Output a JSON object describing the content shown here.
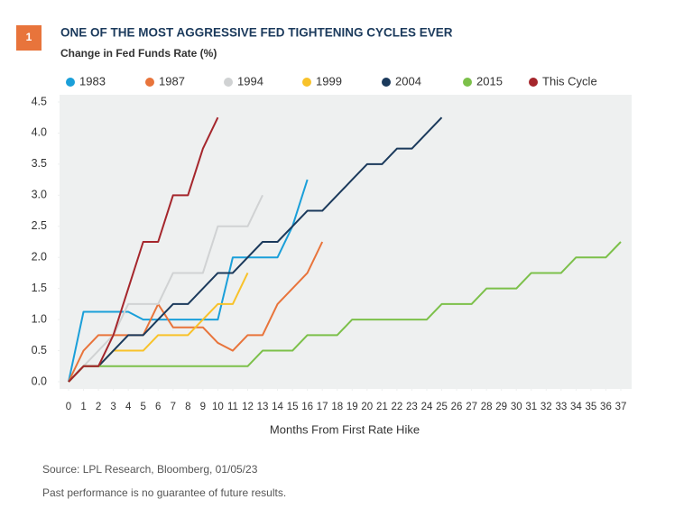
{
  "chart_data": {
    "type": "line",
    "badge": "1",
    "title": "ONE OF THE MOST AGGRESSIVE FED TIGHTENING CYCLES EVER",
    "subtitle": "Change in Fed Funds Rate (%)",
    "x_label": "Months From First Rate Hike",
    "source": "Source: LPL Research, Bloomberg, 01/05/23",
    "note": "Past performance is no guarantee of future results.",
    "x": [
      0,
      1,
      2,
      3,
      4,
      5,
      6,
      7,
      8,
      9,
      10,
      11,
      12,
      13,
      14,
      15,
      16,
      17,
      18,
      19,
      20,
      21,
      22,
      23,
      24,
      25,
      26,
      27,
      28,
      29,
      30,
      31,
      32,
      33,
      34,
      35,
      36,
      37
    ],
    "xlim": [
      0,
      37
    ],
    "xticks": [
      0,
      1,
      2,
      3,
      4,
      5,
      6,
      7,
      8,
      9,
      10,
      11,
      12,
      13,
      14,
      15,
      16,
      17,
      18,
      19,
      20,
      21,
      22,
      23,
      24,
      25,
      26,
      27,
      28,
      29,
      30,
      31,
      32,
      33,
      34,
      35,
      36,
      37
    ],
    "ylim": [
      0,
      4.5
    ],
    "yticks": [
      {
        "value": 0,
        "label": "0.0"
      },
      0.5,
      {
        "value": 1,
        "label": "1.0"
      },
      1.5,
      {
        "value": 2,
        "label": "2.0"
      },
      2.5,
      {
        "value": 3,
        "label": "3.0"
      },
      3.5,
      {
        "value": 4,
        "label": "4.0"
      },
      4.5
    ],
    "series": [
      {
        "name": "1983",
        "color": "#1a9fd9",
        "values": [
          0,
          1.125,
          1.125,
          1.125,
          1.125,
          1,
          1,
          1,
          1,
          1,
          1,
          2,
          2,
          2,
          2,
          2.5,
          3.25,
          null,
          null,
          null,
          null,
          null,
          null,
          null,
          null,
          null,
          null,
          null,
          null,
          null,
          null,
          null,
          null,
          null,
          null,
          null,
          null,
          null
        ]
      },
      {
        "name": "1987",
        "color": "#e8743b",
        "values": [
          0,
          0.5,
          0.75,
          0.75,
          0.75,
          0.75,
          1.25,
          0.875,
          0.875,
          0.875,
          0.625,
          0.5,
          0.75,
          0.75,
          1.25,
          1.5,
          1.75,
          2.25,
          null,
          null,
          null,
          null,
          null,
          null,
          null,
          null,
          null,
          null,
          null,
          null,
          null,
          null,
          null,
          null,
          null,
          null,
          null,
          null
        ]
      },
      {
        "name": "1994",
        "color": "#d0d2d3",
        "values": [
          0,
          0.25,
          0.5,
          0.75,
          1.25,
          1.25,
          1.25,
          1.75,
          1.75,
          1.75,
          2.5,
          2.5,
          2.5,
          3,
          null,
          null,
          null,
          null,
          null,
          null,
          null,
          null,
          null,
          null,
          null,
          null,
          null,
          null,
          null,
          null,
          null,
          null,
          null,
          null,
          null,
          null,
          null,
          null
        ]
      },
      {
        "name": "1999",
        "color": "#f8c22a",
        "values": [
          0,
          0.25,
          0.25,
          0.5,
          0.5,
          0.5,
          0.75,
          0.75,
          0.75,
          1,
          1.25,
          1.25,
          1.75,
          null,
          null,
          null,
          null,
          null,
          null,
          null,
          null,
          null,
          null,
          null,
          null,
          null,
          null,
          null,
          null,
          null,
          null,
          null,
          null,
          null,
          null,
          null,
          null,
          null
        ]
      },
      {
        "name": "2004",
        "color": "#1b3a5c",
        "values": [
          0,
          0.25,
          0.25,
          0.5,
          0.75,
          0.75,
          1,
          1.25,
          1.25,
          1.5,
          1.75,
          1.75,
          2,
          2.25,
          2.25,
          2.5,
          2.75,
          2.75,
          3,
          3.25,
          3.5,
          3.5,
          3.75,
          3.75,
          4,
          4.25,
          null,
          null,
          null,
          null,
          null,
          null,
          null,
          null,
          null,
          null,
          null,
          null
        ]
      },
      {
        "name": "2015",
        "color": "#7cc04a",
        "values": [
          0,
          0.25,
          0.25,
          0.25,
          0.25,
          0.25,
          0.25,
          0.25,
          0.25,
          0.25,
          0.25,
          0.25,
          0.25,
          0.5,
          0.5,
          0.5,
          0.75,
          0.75,
          0.75,
          1,
          1,
          1,
          1,
          1,
          1,
          1.25,
          1.25,
          1.25,
          1.5,
          1.5,
          1.5,
          1.75,
          1.75,
          1.75,
          2,
          2,
          2,
          2.25
        ]
      },
      {
        "name": "This Cycle",
        "color": "#a5262c",
        "values": [
          0,
          0.25,
          0.25,
          0.75,
          1.5,
          2.25,
          2.25,
          3,
          3,
          3.75,
          4.25,
          null,
          null,
          null,
          null,
          null,
          null,
          null,
          null,
          null,
          null,
          null,
          null,
          null,
          null,
          null,
          null,
          null,
          null,
          null,
          null,
          null,
          null,
          null,
          null,
          null,
          null,
          null
        ]
      }
    ]
  }
}
